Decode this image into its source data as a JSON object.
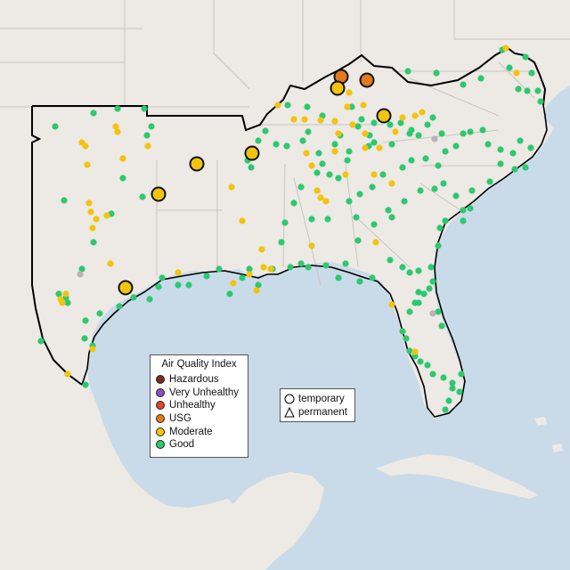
{
  "legend": {
    "title": "Air Quality Index",
    "categories": [
      {
        "label": "Hazardous",
        "color": "#7e2a1e"
      },
      {
        "label": "Very Unhealthy",
        "color": "#8f4fbd"
      },
      {
        "label": "Unhealthy",
        "color": "#e2452f"
      },
      {
        "label": "USG",
        "color": "#e37a1c"
      },
      {
        "label": "Moderate",
        "color": "#f2c40f"
      },
      {
        "label": "Good",
        "color": "#2ec870"
      }
    ]
  },
  "shape_legend": {
    "temporary": "temporary",
    "permanent": "permanent"
  },
  "colors": {
    "water": "#c9dbe9",
    "land": "#ede9e4",
    "border": "#c9c5c0",
    "region_outline": "#000000",
    "inactive": "#b5b5b5"
  }
}
